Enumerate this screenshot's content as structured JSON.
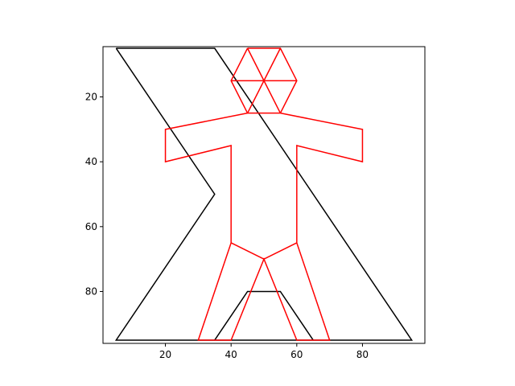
{
  "chart_data": {
    "type": "line",
    "title": "",
    "xlabel": "",
    "ylabel": "",
    "xlim": [
      1,
      99
    ],
    "ylim": [
      96,
      4.5
    ],
    "y_inverted": true,
    "grid": false,
    "legend": "none",
    "x_ticks": [
      20,
      40,
      60,
      80
    ],
    "y_ticks": [
      20,
      40,
      60,
      80
    ],
    "x_tick_labels": [
      "20",
      "40",
      "60",
      "80"
    ],
    "y_tick_labels": [
      "20",
      "40",
      "60",
      "80"
    ],
    "series": [
      {
        "color": "#000000",
        "segments": [
          [
            [
              5,
              5
            ],
            [
              35,
              5
            ],
            [
              95,
              95
            ],
            [
              5,
              95
            ],
            [
              35,
              50
            ],
            [
              5,
              5
            ]
          ],
          [
            [
              35,
              95
            ],
            [
              45,
              80
            ],
            [
              55,
              80
            ],
            [
              65,
              95
            ]
          ]
        ]
      },
      {
        "color": "#ff0000",
        "segments": [
          [
            [
              45,
              5
            ],
            [
              55,
              5
            ],
            [
              60,
              15
            ],
            [
              55,
              25
            ],
            [
              45,
              25
            ],
            [
              40,
              15
            ],
            [
              45,
              5
            ]
          ],
          [
            [
              40,
              15
            ],
            [
              60,
              15
            ]
          ],
          [
            [
              45,
              5
            ],
            [
              55,
              25
            ]
          ],
          [
            [
              55,
              5
            ],
            [
              45,
              25
            ]
          ],
          [
            [
              45,
              25
            ],
            [
              20,
              30
            ],
            [
              20,
              40
            ],
            [
              40,
              35
            ],
            [
              40,
              65
            ],
            [
              30,
              95
            ],
            [
              40,
              95
            ],
            [
              50,
              70
            ],
            [
              60,
              95
            ],
            [
              70,
              95
            ],
            [
              60,
              65
            ],
            [
              60,
              35
            ],
            [
              80,
              40
            ],
            [
              80,
              30
            ],
            [
              55,
              25
            ]
          ],
          [
            [
              40,
              65
            ],
            [
              50,
              70
            ],
            [
              60,
              65
            ]
          ]
        ]
      }
    ]
  }
}
